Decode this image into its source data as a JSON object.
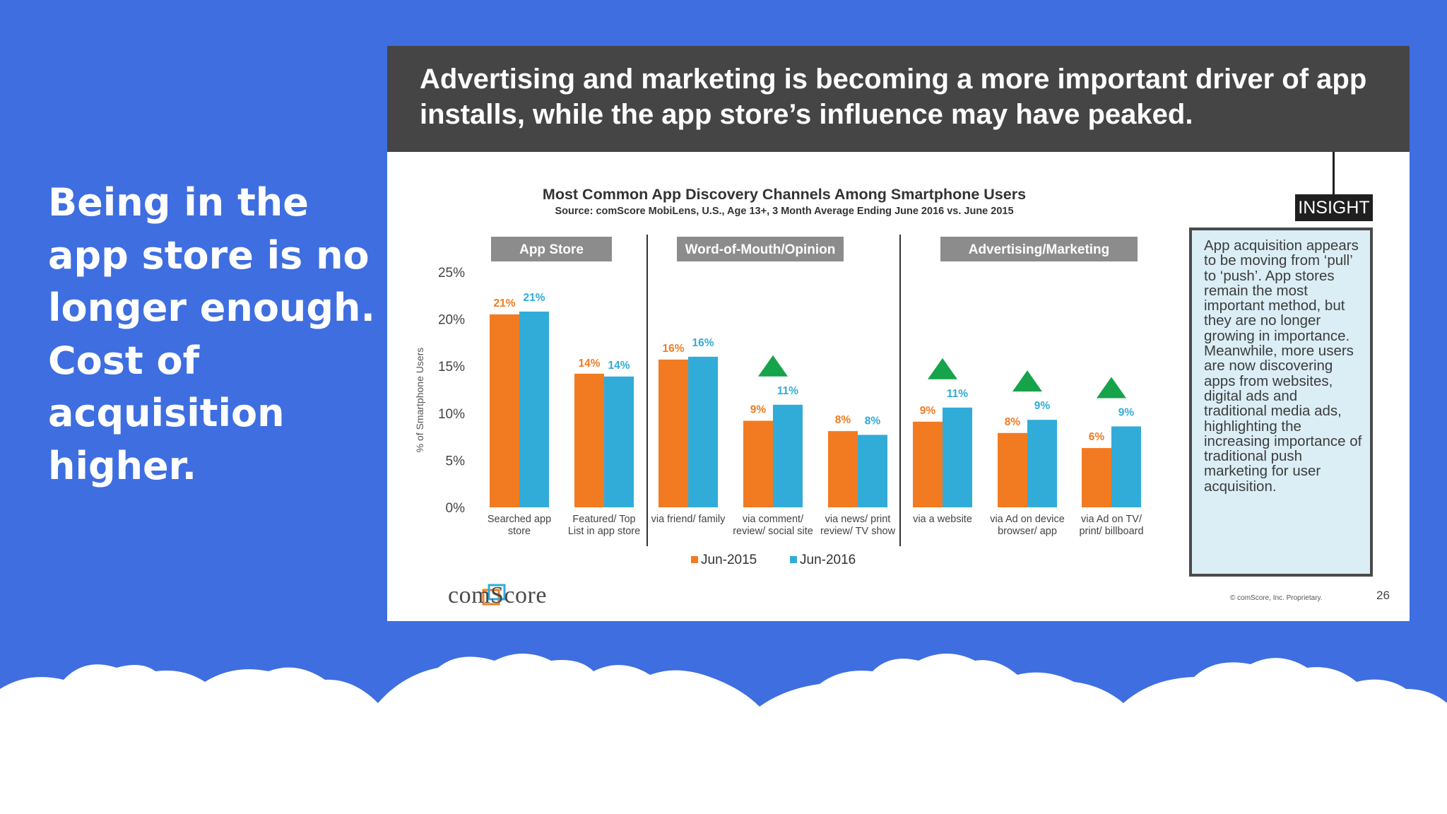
{
  "left_text": {
    "lines": [
      "Being in the",
      "app store is no",
      "longer enough.",
      "Cost of",
      "acquisition",
      "higher."
    ]
  },
  "slide": {
    "headline": "Advertising and marketing is becoming a more important driver of app installs, while the app store’s influence may have peaked.",
    "insight_tag": "INSIGHT",
    "insight_text": "App acquisition appears to be moving from ‘pull’ to ‘push’. App stores remain the most important method, but they are no longer growing in importance. Meanwhile, more users are now discovering apps from websites, digital ads and traditional media ads, highlighting the increasing importance of traditional push marketing for user acquisition.",
    "logo_text": "comScore",
    "logo_icon": "comscore-logo-icon",
    "copyright": "© comScore, Inc. Proprietary.",
    "page_number": "26"
  },
  "chart_data": {
    "type": "bar",
    "title": "Most Common App Discovery Channels Among Smartphone Users",
    "subtitle": "Source: comScore MobiLens, U.S., Age 13+, 3 Month Average Ending June 2016 vs. June 2015",
    "ylabel": "% of Smartphone Users",
    "ylim": [
      0,
      25
    ],
    "yticks": [
      "0%",
      "5%",
      "10%",
      "15%",
      "20%",
      "25%"
    ],
    "ytick_values": [
      0,
      5,
      10,
      15,
      20,
      25
    ],
    "groups": [
      {
        "label": "App Store",
        "categories": [
          0,
          1
        ]
      },
      {
        "label": "Word-of-Mouth/Opinion",
        "categories": [
          2,
          3,
          4
        ]
      },
      {
        "label": "Advertising/Marketing",
        "categories": [
          5,
          6,
          7
        ]
      }
    ],
    "categories": [
      [
        "Searched app",
        "store"
      ],
      [
        "Featured/ Top",
        "List in app store"
      ],
      [
        "via friend/ family"
      ],
      [
        "via comment/",
        "review/ social site"
      ],
      [
        "via news/ print",
        "review/ TV show"
      ],
      [
        "via a website"
      ],
      [
        "via Ad on device",
        "browser/ app"
      ],
      [
        "via Ad on TV/",
        "print/ billboard"
      ]
    ],
    "series": [
      {
        "name": "Jun-2015",
        "color": "#f27b21",
        "values": [
          20.5,
          14.2,
          15.7,
          9.2,
          8.1,
          9.1,
          7.9,
          6.3
        ],
        "labels": [
          "21%",
          "14%",
          "16%",
          "9%",
          "8%",
          "9%",
          "8%",
          "6%"
        ]
      },
      {
        "name": "Jun-2016",
        "color": "#31acd8",
        "values": [
          20.8,
          13.9,
          16.0,
          10.9,
          7.7,
          10.6,
          9.3,
          8.6
        ],
        "labels": [
          "21%",
          "14%",
          "16%",
          "11%",
          "8%",
          "11%",
          "9%",
          "9%"
        ]
      }
    ],
    "increase_markers": [
      3,
      5,
      6,
      7
    ],
    "increase_marker_color": "#16a34a",
    "legend_position": "bottom",
    "grid": false
  }
}
